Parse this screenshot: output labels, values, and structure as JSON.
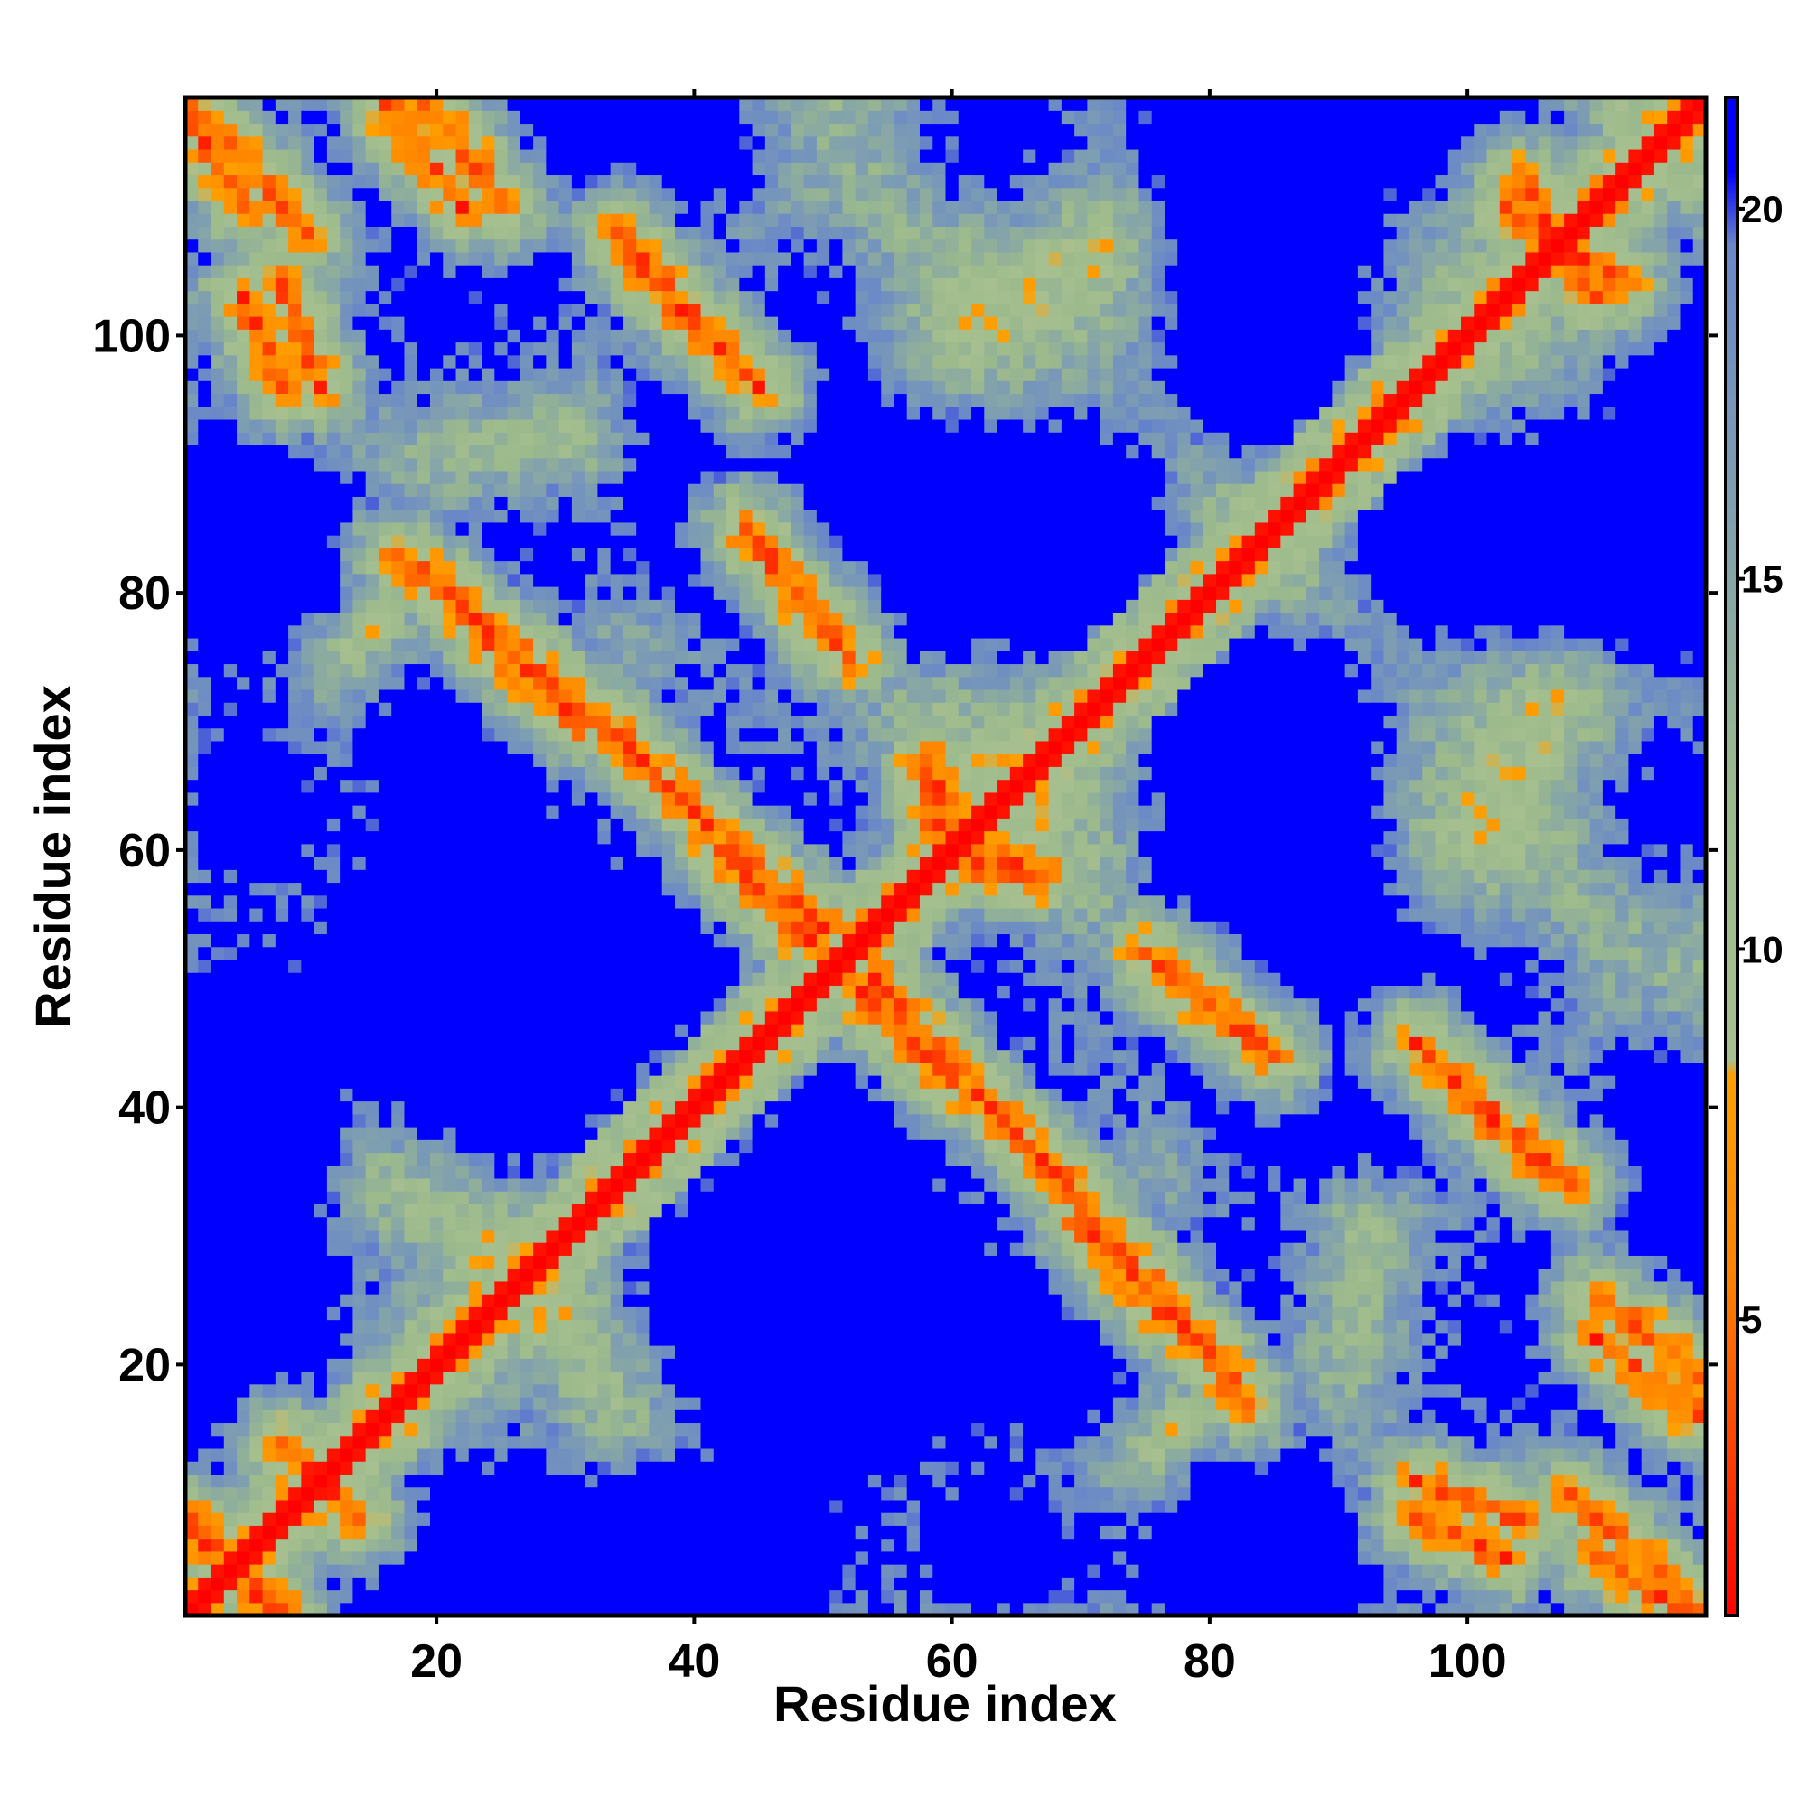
{
  "chart_data": {
    "type": "heatmap",
    "title": "",
    "xlabel": "Residue index",
    "ylabel": "Residue index",
    "n_residues": 118,
    "xlim": [
      1,
      118
    ],
    "ylim": [
      1,
      118
    ],
    "x_ticks": [
      20,
      40,
      60,
      80,
      100
    ],
    "y_ticks": [
      20,
      40,
      60,
      80,
      100
    ],
    "colorbar": {
      "ticks": [
        5,
        10,
        15,
        20
      ],
      "range": [
        1,
        21.5
      ],
      "stops": [
        {
          "value": 1.0,
          "color": "#ff0000"
        },
        {
          "value": 5.5,
          "color": "#ff8000"
        },
        {
          "value": 8.3,
          "color": "#ffa000"
        },
        {
          "value": 8.5,
          "color": "#a8c090"
        },
        {
          "value": 12.0,
          "color": "#9cba8c"
        },
        {
          "value": 16.0,
          "color": "#7f9fb0"
        },
        {
          "value": 19.5,
          "color": "#6a88c8"
        },
        {
          "value": 20.5,
          "color": "#0000ff"
        },
        {
          "value": 21.5,
          "color": "#0000ff"
        }
      ]
    },
    "diagonal_width": 1.5,
    "contact_bands": [
      {
        "from": [
          1,
          118
        ],
        "to": [
          10,
          108
        ],
        "kind": "anti"
      },
      {
        "from": [
          19,
          119
        ],
        "to": [
          25,
          110
        ],
        "kind": "anti"
      },
      {
        "from": [
          34,
          108
        ],
        "to": [
          44,
          97
        ],
        "kind": "anti"
      },
      {
        "from": [
          8,
          104
        ],
        "to": [
          11,
          96
        ],
        "kind": "anti"
      },
      {
        "from": [
          17,
          83
        ],
        "to": [
          34,
          69
        ],
        "kind": "anti"
      },
      {
        "from": [
          34,
          69
        ],
        "to": [
          41,
          62
        ],
        "kind": "anti"
      },
      {
        "from": [
          44,
          85
        ],
        "to": [
          51,
          76
        ],
        "kind": "anti"
      },
      {
        "from": [
          42,
          60
        ],
        "to": [
          52,
          50
        ],
        "kind": "anti"
      },
      {
        "from": [
          54,
          50
        ],
        "to": [
          60,
          43
        ],
        "kind": "anti"
      },
      {
        "from": [
          58,
          67
        ],
        "to": [
          61,
          60
        ],
        "kind": "anti"
      },
      {
        "from": [
          61,
          59
        ],
        "to": [
          67,
          58
        ],
        "kind": "anti"
      },
      {
        "from": [
          63,
          40
        ],
        "to": [
          70,
          33
        ],
        "kind": "anti"
      },
      {
        "from": [
          70,
          31
        ],
        "to": [
          83,
          17
        ],
        "kind": "anti"
      },
      {
        "from": [
          75,
          52
        ],
        "to": [
          85,
          44
        ],
        "kind": "anti"
      },
      {
        "from": [
          96,
          45
        ],
        "to": [
          106,
          35
        ],
        "kind": "anti"
      },
      {
        "from": [
          96,
          8
        ],
        "to": [
          103,
          5
        ],
        "kind": "anti"
      },
      {
        "from": [
          110,
          22
        ],
        "to": [
          118,
          16
        ],
        "kind": "anti"
      },
      {
        "from": [
          110,
          5
        ],
        "to": [
          117,
          1
        ],
        "kind": "anti"
      },
      {
        "from": [
          104,
          112
        ],
        "to": [
          110,
          103
        ],
        "kind": "anti"
      },
      {
        "from": [
          1,
          8
        ],
        "to": [
          7,
          1
        ],
        "kind": "anti"
      },
      {
        "from": [
          8,
          14
        ],
        "to": [
          14,
          8
        ],
        "kind": "anti"
      }
    ],
    "grid": false,
    "legend": "none"
  }
}
